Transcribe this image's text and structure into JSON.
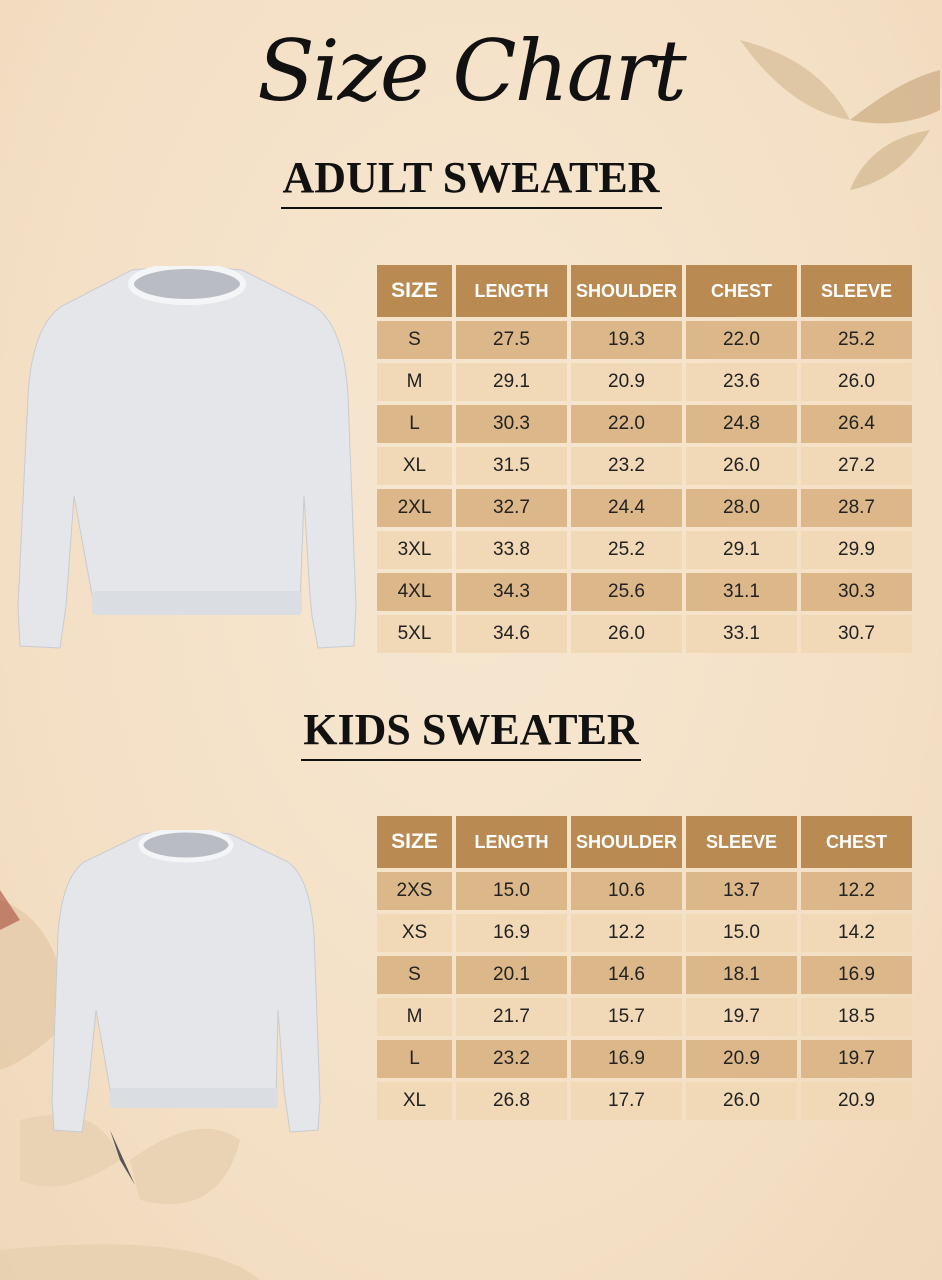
{
  "title": "Size Chart",
  "colors": {
    "header": "#b98a52",
    "row_dark": "#dcb789",
    "row_light": "#f1d9b8",
    "background": "#f3dfc4"
  },
  "adult": {
    "heading": "ADULT SWEATER",
    "columns": [
      "SIZE",
      "LENGTH",
      "SHOULDER",
      "CHEST",
      "SLEEVE"
    ],
    "rows": [
      [
        "S",
        "27.5",
        "19.3",
        "22.0",
        "25.2"
      ],
      [
        "M",
        "29.1",
        "20.9",
        "23.6",
        "26.0"
      ],
      [
        "L",
        "30.3",
        "22.0",
        "24.8",
        "26.4"
      ],
      [
        "XL",
        "31.5",
        "23.2",
        "26.0",
        "27.2"
      ],
      [
        "2XL",
        "32.7",
        "24.4",
        "28.0",
        "28.7"
      ],
      [
        "3XL",
        "33.8",
        "25.2",
        "29.1",
        "29.9"
      ],
      [
        "4XL",
        "34.3",
        "25.6",
        "31.1",
        "30.3"
      ],
      [
        "5XL",
        "34.6",
        "26.0",
        "33.1",
        "30.7"
      ]
    ]
  },
  "kids": {
    "heading": "KIDS SWEATER",
    "columns": [
      "SIZE",
      "LENGTH",
      "SHOULDER",
      "SLEEVE",
      "CHEST"
    ],
    "rows": [
      [
        "2XS",
        "15.0",
        "10.6",
        "13.7",
        "12.2"
      ],
      [
        "XS",
        "16.9",
        "12.2",
        "15.0",
        "14.2"
      ],
      [
        "S",
        "20.1",
        "14.6",
        "18.1",
        "16.9"
      ],
      [
        "M",
        "21.7",
        "15.7",
        "19.7",
        "18.5"
      ],
      [
        "L",
        "23.2",
        "16.9",
        "20.9",
        "19.7"
      ],
      [
        "XL",
        "26.8",
        "17.7",
        "26.0",
        "20.9"
      ]
    ]
  }
}
